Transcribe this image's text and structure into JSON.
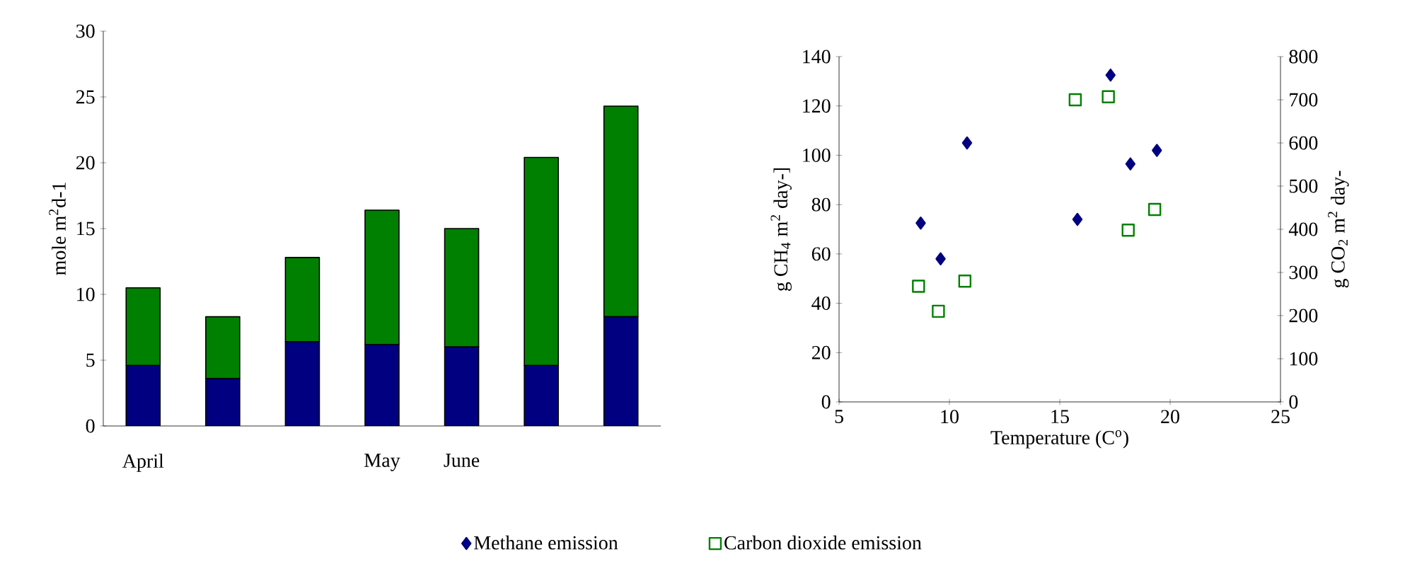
{
  "chart_data": [
    {
      "type": "bar",
      "stacked": true,
      "ylabel": "mole m$^{2}$d-1",
      "categories": [
        "April",
        null,
        null,
        "May",
        "June",
        null,
        null
      ],
      "ylim": [
        0,
        30
      ],
      "yticks": [
        0,
        5,
        10,
        15,
        20,
        25,
        30
      ],
      "series": [
        {
          "color": "#000080",
          "values": [
            4.6,
            3.6,
            6.4,
            6.2,
            6.0,
            4.6,
            8.3
          ]
        },
        {
          "color": "#008000",
          "values": [
            5.9,
            4.7,
            6.4,
            10.2,
            9.0,
            15.8,
            16.0
          ]
        }
      ]
    },
    {
      "type": "scatter",
      "xlabel": "Temperature (C$^{o}$)",
      "ylabel": "g CH$_{4}$ m$^{2}$ day-]",
      "y2label": "g CO$_{2}$ m$^{2}$ day-",
      "xlim": [
        5,
        25
      ],
      "xticks": [
        5,
        10,
        15,
        20,
        25
      ],
      "ylim": [
        0,
        140
      ],
      "yticks": [
        0,
        20,
        40,
        60,
        80,
        100,
        120,
        140
      ],
      "y2lim": [
        0,
        800
      ],
      "y2ticks": [
        0,
        100,
        200,
        300,
        400,
        500,
        600,
        700,
        800
      ],
      "legend": "bottom",
      "series": [
        {
          "name": "Methane emission",
          "color": "#000080",
          "marker": "diamond",
          "x": [
            8.7,
            9.6,
            10.8,
            15.8,
            17.3,
            18.2,
            19.4
          ],
          "values": [
            72.5,
            58,
            105,
            74,
            132.5,
            96.5,
            102
          ]
        },
        {
          "name": "Carbon dioxide emission",
          "color": "#008000",
          "marker": "square",
          "axis": "y2",
          "x": [
            8.6,
            9.5,
            10.7,
            15.7,
            17.2,
            18.1,
            19.3
          ],
          "values": [
            268,
            210,
            280,
            700,
            707,
            398,
            446
          ]
        }
      ]
    }
  ]
}
